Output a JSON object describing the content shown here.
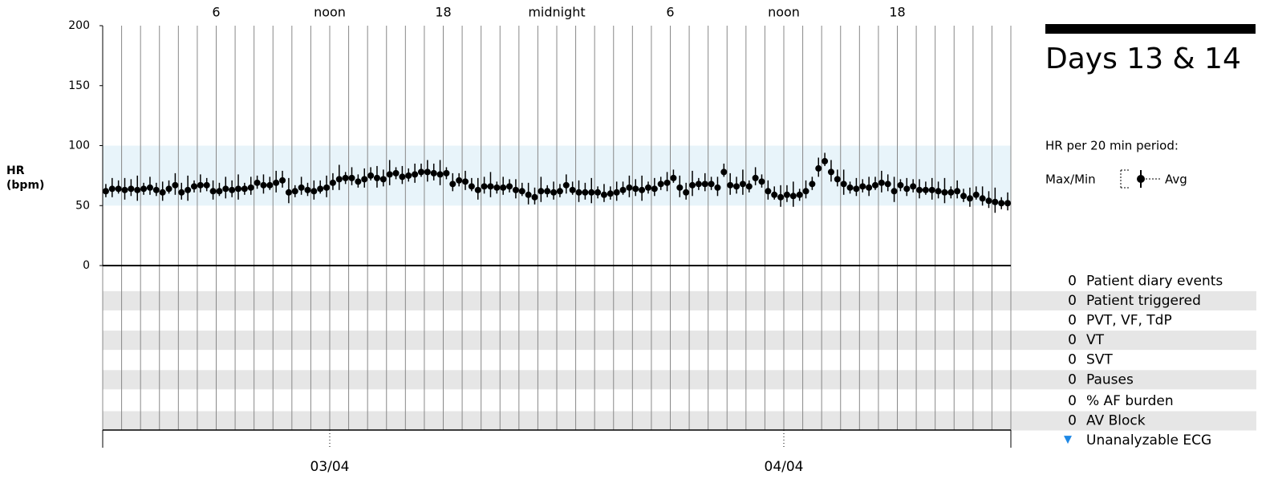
{
  "chart_data": {
    "type": "dot-range",
    "title": "Days 13 & 14",
    "ylabel_lines": [
      "HR",
      "(bpm)"
    ],
    "legend_title": "HR per 20 min period:",
    "legend_range": "Max/Min",
    "legend_avg": "Avg",
    "ylim": [
      0,
      200
    ],
    "yticks": [
      0,
      50,
      100,
      150,
      200
    ],
    "band": [
      50,
      100
    ],
    "band_color": "#e8f4fa",
    "xlim": [
      0,
      2880
    ],
    "xticks": [
      {
        "value": 360,
        "label": "6"
      },
      {
        "value": 720,
        "label": "noon"
      },
      {
        "value": 1080,
        "label": "18"
      },
      {
        "value": 1440,
        "label": "midnight"
      },
      {
        "value": 1800,
        "label": "6"
      },
      {
        "value": 2160,
        "label": "noon"
      },
      {
        "value": 2520,
        "label": "18"
      }
    ],
    "date_ticks": [
      {
        "value": 720,
        "label": "03/04"
      },
      {
        "value": 2160,
        "label": "04/04"
      }
    ],
    "color": "#000000",
    "x": [
      10,
      30,
      50,
      70,
      90,
      110,
      130,
      150,
      170,
      190,
      210,
      230,
      250,
      270,
      290,
      310,
      330,
      350,
      370,
      390,
      410,
      430,
      450,
      470,
      490,
      510,
      530,
      550,
      570,
      590,
      610,
      630,
      650,
      670,
      690,
      710,
      730,
      750,
      770,
      790,
      810,
      830,
      850,
      870,
      890,
      910,
      930,
      950,
      970,
      990,
      1010,
      1030,
      1050,
      1070,
      1090,
      1110,
      1130,
      1150,
      1170,
      1190,
      1210,
      1230,
      1250,
      1270,
      1290,
      1310,
      1330,
      1350,
      1370,
      1390,
      1410,
      1430,
      1450,
      1470,
      1490,
      1510,
      1530,
      1550,
      1570,
      1590,
      1610,
      1630,
      1650,
      1670,
      1690,
      1710,
      1730,
      1750,
      1770,
      1790,
      1810,
      1830,
      1850,
      1870,
      1890,
      1910,
      1930,
      1950,
      1970,
      1990,
      2010,
      2030,
      2050,
      2070,
      2090,
      2110,
      2130,
      2150,
      2170,
      2190,
      2210,
      2230,
      2250,
      2270,
      2290,
      2310,
      2330,
      2350,
      2370,
      2390,
      2410,
      2430,
      2450,
      2470,
      2490,
      2510,
      2530,
      2550,
      2570,
      2590,
      2610,
      2630,
      2650,
      2670,
      2690,
      2710,
      2730,
      2750,
      2770,
      2790,
      2810,
      2830,
      2850,
      2870
    ],
    "values": [
      62,
      64,
      64,
      63,
      64,
      63,
      64,
      65,
      63,
      61,
      64,
      67,
      61,
      63,
      66,
      67,
      67,
      62,
      62,
      64,
      63,
      64,
      64,
      65,
      69,
      67,
      67,
      69,
      71,
      61,
      62,
      65,
      63,
      62,
      64,
      65,
      69,
      72,
      73,
      73,
      70,
      72,
      75,
      73,
      72,
      76,
      77,
      74,
      75,
      76,
      78,
      78,
      77,
      76,
      77,
      68,
      71,
      70,
      66,
      63,
      66,
      66,
      65,
      65,
      66,
      63,
      62,
      59,
      57,
      62,
      62,
      61,
      62,
      67,
      63,
      61,
      61,
      61,
      61,
      59,
      60,
      61,
      63,
      65,
      64,
      63,
      65,
      64,
      68,
      69,
      73,
      65,
      61,
      67,
      68,
      68,
      68,
      65,
      78,
      67,
      66,
      68,
      66,
      73,
      70,
      62,
      59,
      57,
      59,
      58,
      59,
      62,
      68,
      81,
      87,
      78,
      72,
      68,
      65,
      64,
      66,
      65,
      67,
      69,
      68,
      62,
      67,
      64,
      66,
      63,
      63,
      63,
      62,
      61,
      61,
      62,
      58,
      56,
      59,
      56,
      54,
      53,
      52,
      52
    ],
    "max": [
      68,
      73,
      71,
      73,
      72,
      75,
      69,
      74,
      69,
      70,
      71,
      77,
      69,
      75,
      71,
      76,
      73,
      71,
      69,
      74,
      71,
      76,
      69,
      74,
      75,
      76,
      74,
      79,
      79,
      73,
      67,
      74,
      69,
      71,
      71,
      75,
      77,
      84,
      78,
      82,
      76,
      81,
      82,
      83,
      80,
      88,
      82,
      83,
      81,
      85,
      85,
      88,
      85,
      88,
      82,
      77,
      77,
      79,
      73,
      73,
      74,
      78,
      70,
      74,
      72,
      72,
      69,
      69,
      65,
      74,
      67,
      70,
      68,
      76,
      70,
      71,
      69,
      73,
      66,
      68,
      66,
      70,
      70,
      75,
      72,
      75,
      70,
      73,
      74,
      78,
      80,
      75,
      69,
      79,
      73,
      77,
      74,
      74,
      85,
      77,
      74,
      80,
      71,
      82,
      76,
      71,
      66,
      67,
      67,
      70,
      64,
      71,
      74,
      90,
      94,
      88,
      80,
      80,
      70,
      73,
      72,
      74,
      74,
      79,
      76,
      74,
      72,
      73,
      72,
      72,
      70,
      73,
      70,
      73,
      66,
      71,
      64,
      65,
      66,
      66,
      62,
      65,
      57,
      61
    ],
    "min": [
      57,
      57,
      60,
      55,
      58,
      54,
      59,
      59,
      58,
      54,
      60,
      59,
      55,
      54,
      61,
      61,
      62,
      55,
      58,
      56,
      57,
      55,
      59,
      59,
      64,
      60,
      63,
      61,
      65,
      52,
      57,
      59,
      58,
      55,
      60,
      57,
      63,
      63,
      68,
      67,
      65,
      65,
      71,
      65,
      66,
      67,
      72,
      68,
      70,
      69,
      74,
      70,
      71,
      67,
      72,
      62,
      66,
      63,
      62,
      55,
      60,
      57,
      60,
      59,
      61,
      56,
      58,
      51,
      51,
      53,
      57,
      55,
      57,
      60,
      59,
      53,
      55,
      52,
      56,
      53,
      55,
      54,
      59,
      57,
      58,
      54,
      60,
      58,
      63,
      62,
      69,
      57,
      55,
      58,
      63,
      62,
      63,
      58,
      74,
      59,
      60,
      59,
      61,
      67,
      65,
      55,
      55,
      49,
      53,
      49,
      54,
      56,
      63,
      74,
      83,
      70,
      66,
      59,
      60,
      58,
      61,
      58,
      63,
      61,
      62,
      53,
      62,
      58,
      61,
      56,
      59,
      55,
      56,
      52,
      56,
      56,
      53,
      49,
      55,
      50,
      48,
      44,
      47,
      46
    ]
  },
  "events": [
    {
      "count": 0,
      "label": "Patient diary events"
    },
    {
      "count": 0,
      "label": "Patient triggered"
    },
    {
      "count": 0,
      "label": "PVT, VF, TdP"
    },
    {
      "count": 0,
      "label": "VT"
    },
    {
      "count": 0,
      "label": "SVT"
    },
    {
      "count": 0,
      "label": "Pauses"
    },
    {
      "count": 0,
      "label": "% AF burden"
    },
    {
      "count": 0,
      "label": "AV Block"
    }
  ],
  "unanalyzable": {
    "marker": "▼",
    "label": "Unanalyzable ECG",
    "color": "#1e88e5"
  }
}
